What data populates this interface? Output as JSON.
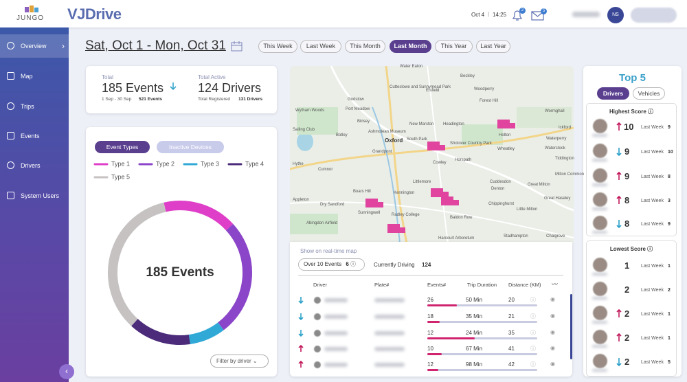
{
  "header": {
    "logo": "JUNGO",
    "app_name": "VJDrive",
    "date": "Oct 4",
    "time": "14:25",
    "notifications": 2,
    "messages": 5,
    "avatar": "NS"
  },
  "sidebar": {
    "items": [
      "Overview",
      "Map",
      "Trips",
      "Events",
      "Drivers",
      "System Users"
    ],
    "active": 0
  },
  "date_range": "Sat, Oct 1 - Mon, Oct 31",
  "period_filters": {
    "options": [
      "This Week",
      "Last Week",
      "This Month",
      "Last Month",
      "This Year",
      "Last Year"
    ],
    "active": 3
  },
  "summary": {
    "total_label": "Total",
    "total_events": "185 Events",
    "period": "1 Sep - 30 Sep",
    "period_events": "521 Events",
    "active_label": "Total Active",
    "active_drivers": "124 Drivers",
    "registered_label": "Total Registered",
    "registered_drivers": "131 Drivers"
  },
  "event_tabs": [
    "Event Types",
    "Inactive Devices"
  ],
  "filter_button": "Filter by driver",
  "chart_data": {
    "type": "donut",
    "center_label": "185 Events",
    "categories": [
      "Type 1",
      "Type 2",
      "Type 3",
      "Type 4",
      "Type 5"
    ],
    "colors": [
      "#df3fc8",
      "#8b45c9",
      "#30a9d6",
      "#4b2b7a",
      "#c6c2c2"
    ],
    "values": [
      31,
      49,
      15,
      26,
      64
    ]
  },
  "map": {
    "places": [
      "Water Eaton",
      "Beckley",
      "Woodperry",
      "Cutteslowe and Sunnymead Park",
      "Elsfield",
      "Godstow",
      "Port Meadow",
      "Binsey",
      "Wytham Woods",
      "Forest Hill",
      "Wormghall",
      "Headington",
      "New Marston",
      "Oxford",
      "South Park",
      "Shotover Country Park",
      "Holton",
      "Waterperry",
      "Ickford",
      "Wheatley",
      "Waterstock",
      "Tiddington",
      "Botley",
      "Ashmolean Museum",
      "Grandpont",
      "Cowley",
      "Horspath",
      "Hythe",
      "Cumnor",
      "Milton Common",
      "Boars Hill",
      "Kennington",
      "Littlemore",
      "Cuddesdon",
      "Denton",
      "Great Milton",
      "Appleton",
      "Great Haseley",
      "Dry Sandford",
      "Sunningwell",
      "Chippinghurst",
      "Little Milton",
      "Baldon Row",
      "Radley College",
      "Abingdon Airfield",
      "Harcourt Arboretum",
      "Stadhampton",
      "Chalgrove",
      "Sailing Club"
    ]
  },
  "realtime": {
    "title": "Show on real-time map",
    "over_label": "Over 10 Events",
    "over_count": 6,
    "driving_label": "Currently Driving",
    "driving_count": 124
  },
  "table": {
    "columns": [
      "Driver",
      "Plate#",
      "Events#",
      "Trip Duration",
      "Distance (KM)"
    ],
    "rows": [
      {
        "trend": "down",
        "events": 26,
        "duration": "50 Min",
        "distance": 20,
        "progress": 0.27
      },
      {
        "trend": "down",
        "events": 18,
        "duration": "35 Min",
        "distance": 21,
        "progress": 0.11
      },
      {
        "trend": "down",
        "events": 12,
        "duration": "24 Min",
        "distance": 35,
        "progress": 0.43
      },
      {
        "trend": "up",
        "events": 10,
        "duration": "67 Min",
        "distance": 41,
        "progress": 0.13
      },
      {
        "trend": "up",
        "events": 12,
        "duration": "98 Min",
        "distance": 42,
        "progress": 0.1
      }
    ]
  },
  "top5": {
    "title": "Top 5",
    "tabs": [
      "Drivers",
      "Vehicles"
    ],
    "active_tab": 0,
    "last_week_label": "Last Week",
    "highest": {
      "title": "Highest Score",
      "rows": [
        {
          "trend": "up",
          "score": 10,
          "last_week": 9
        },
        {
          "trend": "down",
          "score": 9,
          "last_week": 10
        },
        {
          "trend": "up",
          "score": 9,
          "last_week": 8
        },
        {
          "trend": "up",
          "score": 8,
          "last_week": 3
        },
        {
          "trend": "down",
          "score": 8,
          "last_week": 9
        }
      ]
    },
    "lowest": {
      "title": "Lowest Score",
      "rows": [
        {
          "trend": null,
          "score": 1,
          "last_week": 1
        },
        {
          "trend": null,
          "score": 2,
          "last_week": 2
        },
        {
          "trend": "up",
          "score": 2,
          "last_week": 1
        },
        {
          "trend": "up",
          "score": 2,
          "last_week": 1
        },
        {
          "trend": "down",
          "score": 2,
          "last_week": 5
        }
      ]
    }
  }
}
